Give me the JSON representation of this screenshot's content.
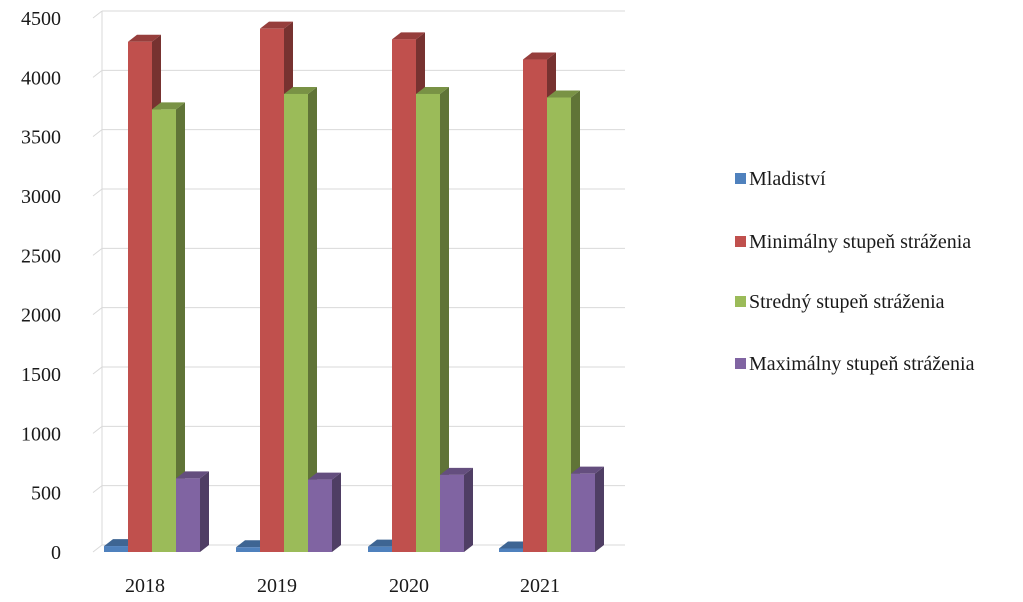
{
  "chart_data": {
    "type": "bar",
    "title": "",
    "xlabel": "",
    "ylabel": "",
    "categories": [
      "2018",
      "2019",
      "2020",
      "2021"
    ],
    "ylim": [
      0,
      4500
    ],
    "yticks": [
      "0",
      "500",
      "1000",
      "1500",
      "2000",
      "2500",
      "3000",
      "3500",
      "4000",
      "4500"
    ],
    "grid": true,
    "legend_position": "right",
    "style": "3d-columns",
    "series": [
      {
        "name": "Mladiství",
        "color": "#4F81BD",
        "values": [
          50,
          40,
          45,
          30
        ]
      },
      {
        "name": "Minimálny stupeň stráženia",
        "color": "#C0504D",
        "values": [
          4300,
          4410,
          4320,
          4150
        ]
      },
      {
        "name": "Stredný stupeň stráženia",
        "color": "#9BBB59",
        "values": [
          3730,
          3860,
          3860,
          3830
        ]
      },
      {
        "name": "Maximálny stupeň stráženia",
        "color": "#8064A2",
        "values": [
          620,
          610,
          650,
          660
        ]
      }
    ]
  }
}
